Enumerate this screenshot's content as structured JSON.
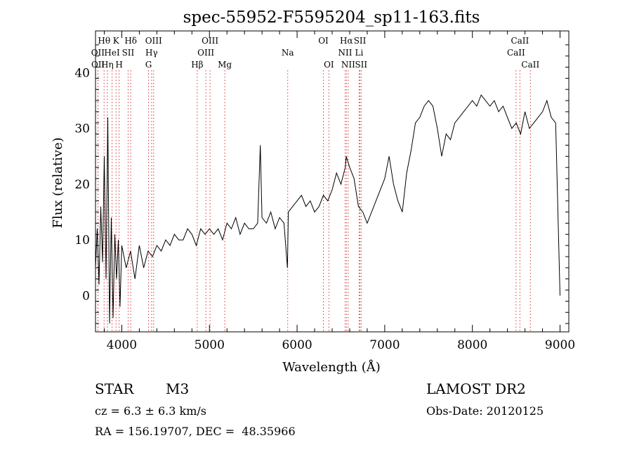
{
  "chart_data": {
    "type": "line",
    "title": "spec-55952-F5595204_sp11-163.fits",
    "xlabel": "Wavelength (Å)",
    "ylabel": "Flux (relative)",
    "xlim": [
      3700,
      9100
    ],
    "ylim": [
      -6.5,
      47.5
    ],
    "xticks": [
      4000,
      5000,
      6000,
      7000,
      8000,
      9000
    ],
    "yticks": [
      0,
      10,
      20,
      30,
      40
    ],
    "grid": false,
    "line_color": "#000000",
    "marker_color": "#dd3333",
    "series": [
      {
        "x": [
          3700,
          3720,
          3740,
          3760,
          3780,
          3800,
          3820,
          3840,
          3860,
          3880,
          3900,
          3920,
          3940,
          3960,
          3980,
          4000,
          4050,
          4100,
          4150,
          4200,
          4250,
          4300,
          4350,
          4400,
          4450,
          4500,
          4550,
          4600,
          4650,
          4700,
          4750,
          4800,
          4850,
          4900,
          4950,
          5000,
          5050,
          5100,
          5150,
          5200,
          5250,
          5300,
          5350,
          5400,
          5450,
          5500,
          5550,
          5580,
          5600,
          5650,
          5700,
          5750,
          5800,
          5850,
          5890,
          5900,
          5950,
          6000,
          6050,
          6100,
          6150,
          6200,
          6250,
          6300,
          6350,
          6400,
          6450,
          6500,
          6550,
          6560,
          6600,
          6650,
          6700,
          6750,
          6800,
          6850,
          6900,
          6950,
          7000,
          7050,
          7100,
          7150,
          7200,
          7250,
          7300,
          7350,
          7400,
          7450,
          7500,
          7550,
          7600,
          7650,
          7700,
          7750,
          7800,
          7850,
          7900,
          7950,
          8000,
          8050,
          8100,
          8150,
          8200,
          8250,
          8300,
          8350,
          8400,
          8450,
          8500,
          8550,
          8600,
          8650,
          8700,
          8750,
          8800,
          8850,
          8900,
          8950,
          9000
        ],
        "y": [
          5,
          12,
          2,
          16,
          6,
          25,
          3,
          32,
          -5,
          14,
          -4,
          11,
          3,
          10,
          -2,
          9,
          5,
          8,
          3,
          9,
          5,
          8,
          7,
          9,
          8,
          10,
          9,
          11,
          10,
          10,
          12,
          11,
          9,
          12,
          11,
          12,
          11,
          12,
          10,
          13,
          12,
          14,
          11,
          13,
          12,
          12,
          13,
          27,
          14,
          13,
          15,
          12,
          14,
          13,
          5,
          15,
          16,
          17,
          18,
          16,
          17,
          15,
          16,
          18,
          17,
          19,
          22,
          20,
          23,
          25,
          23,
          21,
          16,
          15,
          13,
          15,
          17,
          19,
          21,
          25,
          20,
          17,
          15,
          22,
          26,
          31,
          32,
          34,
          35,
          34,
          30,
          25,
          29,
          28,
          31,
          32,
          33,
          34,
          35,
          34,
          36,
          35,
          34,
          35,
          33,
          34,
          32,
          30,
          31,
          29,
          33,
          30,
          31,
          32,
          33,
          35,
          32,
          31,
          0
        ]
      }
    ],
    "spectral_lines": [
      {
        "label": "Hθ",
        "row": 0,
        "x": 3798
      },
      {
        "label": "K",
        "row": 0,
        "x": 3934
      },
      {
        "label": "Hδ",
        "row": 0,
        "x": 4102
      },
      {
        "label": "OIII",
        "row": 0,
        "x": 4363
      },
      {
        "label": "OIII",
        "row": 0,
        "x": 5007
      },
      {
        "label": "OI",
        "row": 0,
        "x": 6300
      },
      {
        "label": "Hα",
        "row": 0,
        "x": 6563
      },
      {
        "label": "SII",
        "row": 0,
        "x": 6717
      },
      {
        "label": "CaII",
        "row": 0,
        "x": 8542
      },
      {
        "label": "OII",
        "row": 1,
        "x": 3727
      },
      {
        "label": "HeI",
        "row": 1,
        "x": 3889
      },
      {
        "label": "SII",
        "row": 1,
        "x": 4072
      },
      {
        "label": "Hγ",
        "row": 1,
        "x": 4340
      },
      {
        "label": "OIII",
        "row": 1,
        "x": 4959
      },
      {
        "label": "Na",
        "row": 1,
        "x": 5893
      },
      {
        "label": "NII",
        "row": 1,
        "x": 6548
      },
      {
        "label": "Li",
        "row": 1,
        "x": 6708
      },
      {
        "label": "CaII",
        "row": 1,
        "x": 8498
      },
      {
        "label": "OII",
        "row": 2,
        "x": 3729
      },
      {
        "label": "Hη",
        "row": 2,
        "x": 3835
      },
      {
        "label": "H",
        "row": 2,
        "x": 3969
      },
      {
        "label": "G",
        "row": 2,
        "x": 4305
      },
      {
        "label": "Hβ",
        "row": 2,
        "x": 4861
      },
      {
        "label": "Mg",
        "row": 2,
        "x": 5175
      },
      {
        "label": "OI",
        "row": 2,
        "x": 6363
      },
      {
        "label": "NII",
        "row": 2,
        "x": 6583
      },
      {
        "label": "SII",
        "row": 2,
        "x": 6731
      },
      {
        "label": "CaII",
        "row": 2,
        "x": 8662
      }
    ]
  },
  "info": {
    "class_label": "STAR",
    "subclass": "M3",
    "survey": "LAMOST DR2",
    "cz": "cz = 6.3 ± 6.3 km/s",
    "obs_date": "Obs-Date: 20120125",
    "coords": "RA = 156.19707, DEC =  48.35966"
  }
}
